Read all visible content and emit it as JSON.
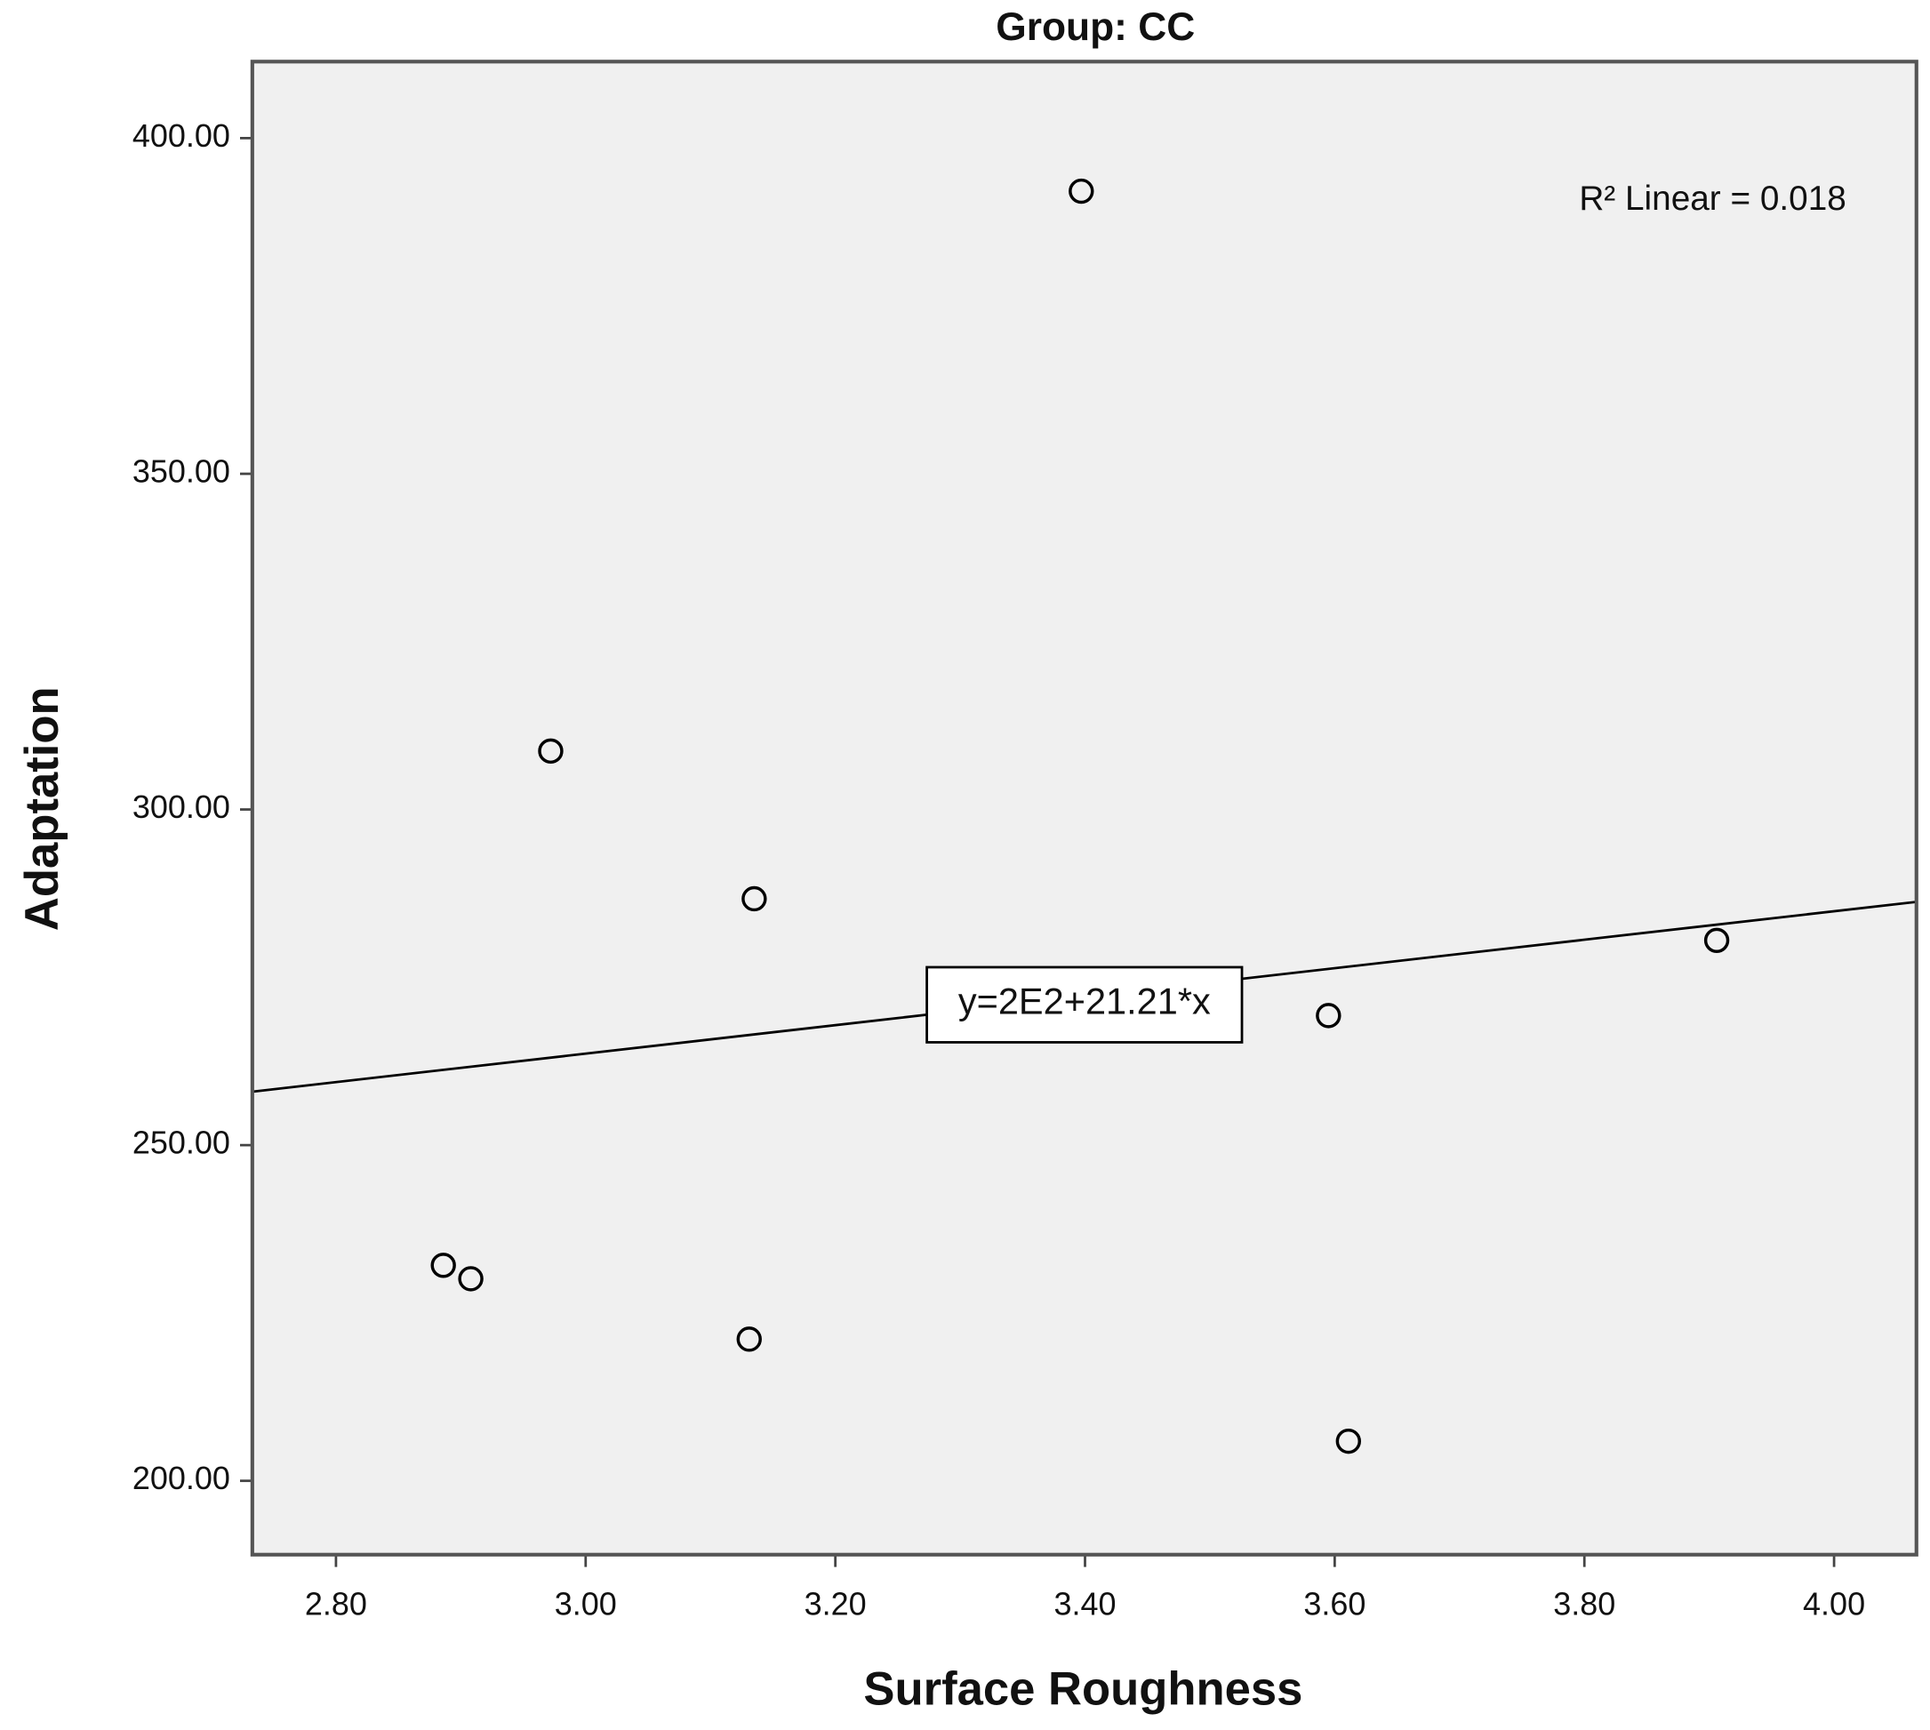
{
  "chart_data": {
    "type": "scatter",
    "title": "Group: CC",
    "x_label": "Surface Roughness",
    "y_label": "Adaptation",
    "x": [
      3.397,
      2.972,
      3.135,
      3.906,
      3.595,
      2.886,
      2.908,
      3.131,
      3.611
    ],
    "values": [
      392.1,
      308.7,
      286.7,
      280.5,
      269.3,
      232.1,
      230.1,
      221.1,
      205.9
    ],
    "xlim": [
      2.733,
      4.066
    ],
    "ylim": [
      189.0,
      411.4
    ],
    "xticks": [
      {
        "value": 2.8,
        "label": "2.80"
      },
      {
        "value": 3.0,
        "label": "3.00"
      },
      {
        "value": 3.2,
        "label": "3.20"
      },
      {
        "value": 3.4,
        "label": "3.40"
      },
      {
        "value": 3.6,
        "label": "3.60"
      },
      {
        "value": 3.8,
        "label": "3.80"
      },
      {
        "value": 4.0,
        "label": "4.00"
      }
    ],
    "yticks": [
      {
        "value": 200,
        "label": "200.00"
      },
      {
        "value": 250,
        "label": "250.00"
      },
      {
        "value": 300,
        "label": "300.00"
      },
      {
        "value": 350,
        "label": "350.00"
      },
      {
        "value": 400,
        "label": "400.00"
      }
    ],
    "fit_line": {
      "intercept": 200,
      "slope": 21.21,
      "label": "y=2E2+21.21*x"
    },
    "r_squared_label": "R² Linear = 0.018",
    "background": "#f0f0f0",
    "color": "#000000"
  }
}
